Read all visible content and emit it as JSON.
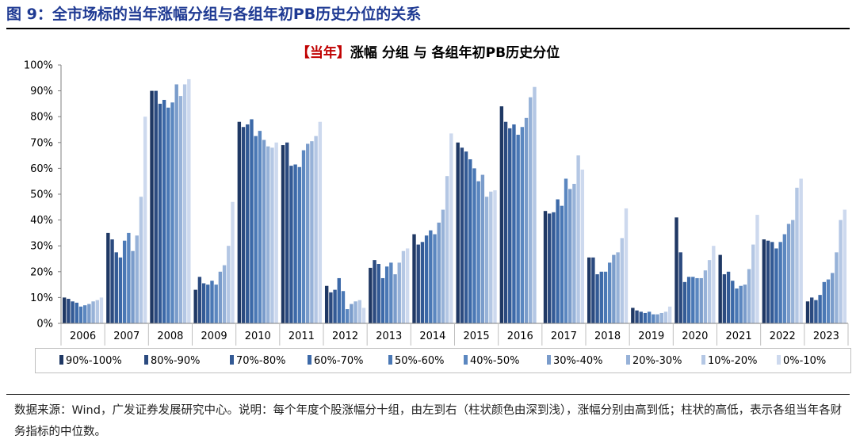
{
  "figure": {
    "title": "图 9：全市场标的当年涨幅分组与各组年初PB历史分位的关系",
    "chart_title_highlight": "【当年】",
    "chart_title_rest": "涨幅 分组  与  各组年初PB历史分位",
    "source": "数据来源：Wind，广发证券发展研究中心。说明：每个年度个股涨幅分十组，由左到右（柱状颜色由深到浅），涨幅分别由高到低；柱状的高低，表示各组当年各财务指标的中位数。"
  },
  "colors": [
    "#1f3864",
    "#2b4a7f",
    "#335a95",
    "#3c69a8",
    "#4a78b5",
    "#5b87c0",
    "#7a9ccb",
    "#97b2d8",
    "#b4c7e4",
    "#cdd9ee"
  ],
  "chart_data": {
    "type": "bar",
    "categories": [
      "2006",
      "2007",
      "2008",
      "2009",
      "2010",
      "2011",
      "2012",
      "2013",
      "2014",
      "2015",
      "2016",
      "2017",
      "2018",
      "2019",
      "2020",
      "2021",
      "2022",
      "2023"
    ],
    "ylim": [
      0,
      100
    ],
    "yticks": [
      "0%",
      "10%",
      "20%",
      "30%",
      "40%",
      "50%",
      "60%",
      "70%",
      "80%",
      "90%",
      "100%"
    ],
    "grid": false,
    "legend_position": "bottom",
    "series": [
      {
        "name": "90%-100%",
        "values": [
          10,
          35,
          90,
          13,
          78,
          69,
          14.5,
          21.5,
          34.5,
          70,
          84,
          43.5,
          25.5,
          6,
          41,
          26.5,
          32.5,
          8.5
        ]
      },
      {
        "name": "80%-90%",
        "values": [
          9.5,
          32.5,
          90,
          18,
          76,
          70,
          12,
          24.5,
          30.5,
          68,
          78,
          42.5,
          25.5,
          5,
          27.5,
          19,
          32,
          10
        ]
      },
      {
        "name": "70%-80%",
        "values": [
          8.5,
          27.5,
          85,
          15.5,
          77,
          61,
          13,
          23,
          31.5,
          66.5,
          75.5,
          43,
          19,
          4.5,
          16,
          20,
          31.5,
          9
        ]
      },
      {
        "name": "60%-70%",
        "values": [
          8,
          25.5,
          86.5,
          15,
          79,
          61.5,
          17.5,
          17.5,
          34,
          63.5,
          77,
          48,
          20,
          4,
          18,
          16.5,
          29,
          11
        ]
      },
      {
        "name": "50%-60%",
        "values": [
          6.5,
          32,
          83.5,
          16.5,
          72.5,
          60.5,
          12.5,
          22,
          36,
          60,
          73,
          45.5,
          20,
          4.5,
          18,
          13.5,
          31.5,
          16
        ]
      },
      {
        "name": "40%-50%",
        "values": [
          7,
          35,
          85.5,
          15,
          74.5,
          67,
          5.5,
          23.5,
          34.5,
          55,
          76,
          56,
          23.5,
          3.5,
          17.5,
          14.5,
          34.5,
          17
        ]
      },
      {
        "name": "30%-40%",
        "values": [
          7.5,
          28,
          92.5,
          20,
          71,
          69.5,
          7.5,
          19,
          39,
          57.5,
          79.5,
          52,
          26.5,
          3.5,
          17.5,
          15,
          38.5,
          19.5
        ]
      },
      {
        "name": "20%-30%",
        "values": [
          8.5,
          34,
          88,
          22.5,
          68.5,
          70.5,
          8.5,
          23.5,
          44,
          49,
          87.5,
          54,
          27.5,
          4,
          20.5,
          21,
          40,
          27.5
        ]
      },
      {
        "name": "10%-20%",
        "values": [
          9,
          49,
          92.5,
          30,
          68,
          72.5,
          9,
          28,
          57,
          51,
          91.5,
          65,
          33,
          4.5,
          24.5,
          30.5,
          52.5,
          40
        ]
      },
      {
        "name": "0%-10%",
        "values": [
          10,
          80,
          94.5,
          47,
          70,
          78,
          6,
          29,
          73.5,
          51.5,
          null,
          59.5,
          44.5,
          6.5,
          30,
          42,
          56,
          44
        ]
      }
    ]
  }
}
